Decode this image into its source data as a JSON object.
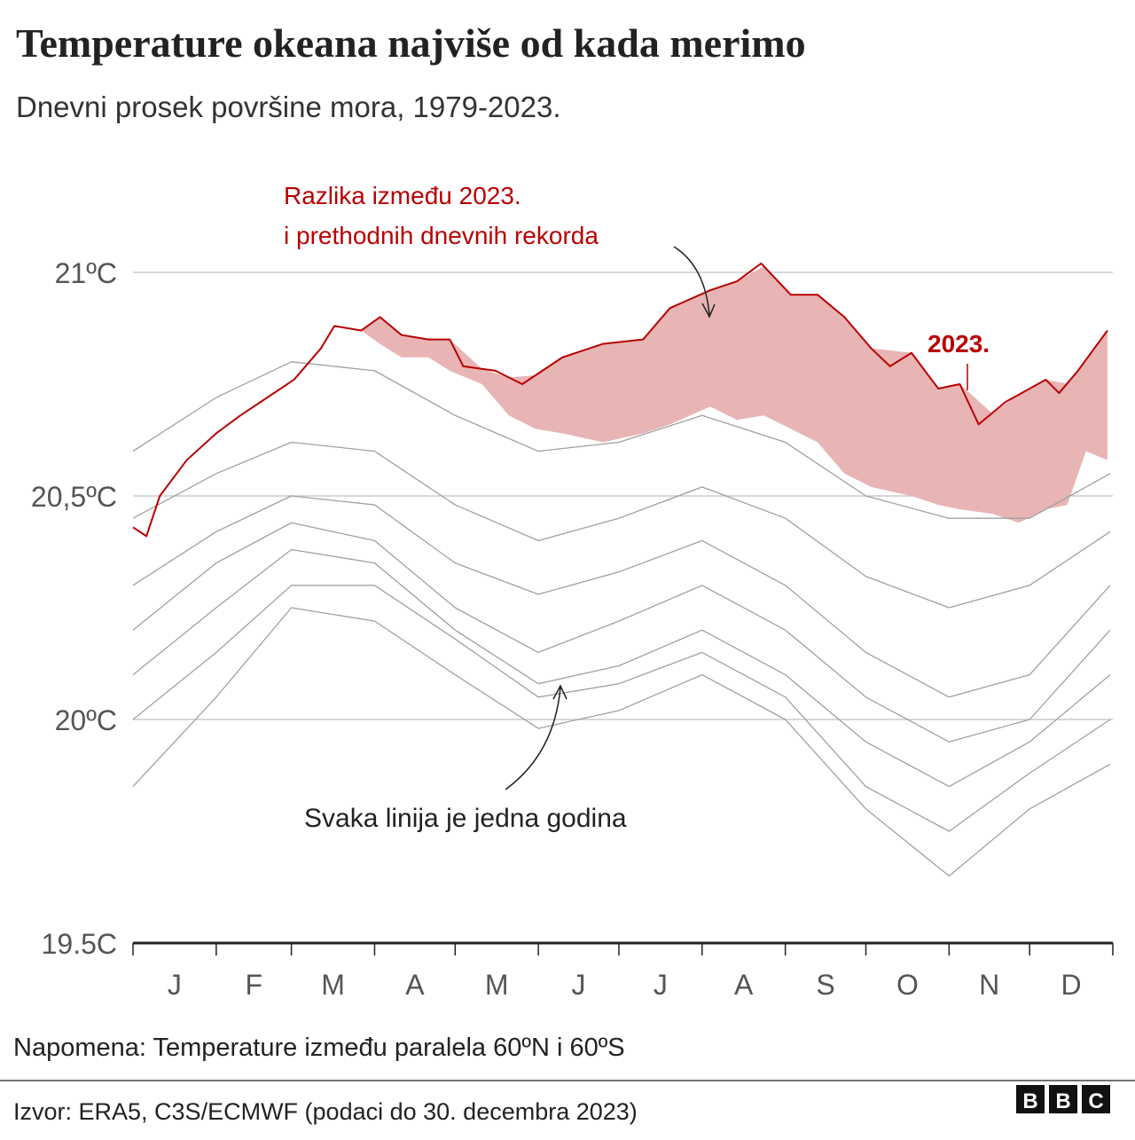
{
  "chart_data": {
    "type": "line",
    "title": "Temperature okeana najviše od kada merimo",
    "subtitle": "Dnevni prosek površine mora, 1979-2023.",
    "annotations": [
      "Razlika između 2023.",
      "i prethodnih dnevnih rekorda",
      "Svaka linija je jedna godina",
      "2023."
    ],
    "note": "Napomena: Temperature između paralela 60ºN i 60ºS",
    "source": "Izvor: ERA5, C3S/ECMWF (podaci do 30. decembra 2023)",
    "logo": [
      "B",
      "B",
      "C"
    ],
    "categories": [
      "J",
      "F",
      "M",
      "A",
      "M",
      "J",
      "J",
      "A",
      "S",
      "O",
      "N",
      "D"
    ],
    "xlim": [
      0,
      365
    ],
    "xticks": [
      0,
      31,
      59,
      90,
      120,
      151,
      181,
      212,
      243,
      273,
      304,
      334,
      365
    ],
    "ylim": [
      19.5,
      21.21
    ],
    "yticks": [
      {
        "value": 19.5,
        "label": "19.5C"
      },
      {
        "value": 20,
        "label": "20ºC"
      },
      {
        "value": 20.5,
        "label": "20,5ºC"
      },
      {
        "value": 21,
        "label": "21ºC"
      }
    ],
    "grid": true,
    "series": [
      {
        "name": "2023.",
        "color": "#b80000",
        "x": [
          0,
          5,
          10,
          20,
          31,
          40,
          50,
          60,
          70,
          75,
          85,
          92,
          100,
          110,
          118,
          123,
          135,
          145,
          160,
          175,
          190,
          200,
          215,
          225,
          234,
          245,
          255,
          265,
          275,
          282,
          290,
          300,
          308,
          315,
          325,
          340,
          345,
          352,
          363
        ],
        "values": [
          20.43,
          20.41,
          20.5,
          20.58,
          20.64,
          20.68,
          20.72,
          20.76,
          20.83,
          20.88,
          20.87,
          20.9,
          20.86,
          20.85,
          20.85,
          20.79,
          20.78,
          20.75,
          20.81,
          20.84,
          20.85,
          20.92,
          20.96,
          20.98,
          21.02,
          20.95,
          20.95,
          20.9,
          20.83,
          20.79,
          20.82,
          20.74,
          20.75,
          20.66,
          20.71,
          20.76,
          20.73,
          20.78,
          20.87
        ]
      },
      {
        "color": "#e8b4b4",
        "x": [
          85,
          92,
          100,
          110,
          118,
          130,
          140,
          150,
          160,
          175,
          190,
          200,
          215,
          225,
          235,
          245,
          255,
          265,
          275,
          290,
          300,
          308,
          320,
          330,
          340,
          348,
          355,
          363
        ],
        "values": [
          20.87,
          20.84,
          20.81,
          20.81,
          20.78,
          20.75,
          20.68,
          20.65,
          20.64,
          20.62,
          20.64,
          20.66,
          20.7,
          20.67,
          20.68,
          20.65,
          20.62,
          20.55,
          20.52,
          20.5,
          20.48,
          20.47,
          20.46,
          20.44,
          20.47,
          20.48,
          20.6,
          20.58
        ]
      },
      {
        "color": "#a0a0a0",
        "x": [
          0,
          31,
          59,
          90,
          120,
          151,
          181,
          212,
          243,
          273,
          304,
          334,
          364
        ],
        "values": [
          20.6,
          20.72,
          20.8,
          20.78,
          20.68,
          20.6,
          20.62,
          20.68,
          20.62,
          20.5,
          20.45,
          20.45,
          20.55
        ]
      },
      {
        "color": "#a0a0a0",
        "x": [
          0,
          31,
          59,
          90,
          120,
          151,
          181,
          212,
          243,
          273,
          304,
          334,
          364
        ],
        "values": [
          20.45,
          20.55,
          20.62,
          20.6,
          20.48,
          20.4,
          20.45,
          20.52,
          20.45,
          20.32,
          20.25,
          20.3,
          20.42
        ]
      },
      {
        "color": "#a0a0a0",
        "x": [
          0,
          31,
          59,
          90,
          120,
          151,
          181,
          212,
          243,
          273,
          304,
          334,
          364
        ],
        "values": [
          20.3,
          20.42,
          20.5,
          20.48,
          20.35,
          20.28,
          20.33,
          20.4,
          20.3,
          20.15,
          20.05,
          20.1,
          20.3
        ]
      },
      {
        "color": "#a0a0a0",
        "x": [
          0,
          31,
          59,
          90,
          120,
          151,
          181,
          212,
          243,
          273,
          304,
          334,
          364
        ],
        "values": [
          20.2,
          20.35,
          20.44,
          20.4,
          20.25,
          20.15,
          20.22,
          20.3,
          20.2,
          20.05,
          19.95,
          20.0,
          20.2
        ]
      },
      {
        "color": "#a0a0a0",
        "x": [
          0,
          31,
          59,
          90,
          120,
          151,
          181,
          212,
          243,
          273,
          304,
          334,
          364
        ],
        "values": [
          20.1,
          20.25,
          20.38,
          20.35,
          20.2,
          20.08,
          20.12,
          20.2,
          20.1,
          19.95,
          19.85,
          19.95,
          20.1
        ]
      },
      {
        "color": "#a0a0a0",
        "x": [
          0,
          31,
          59,
          90,
          120,
          151,
          181,
          212,
          243,
          273,
          304,
          334,
          364
        ],
        "values": [
          20.0,
          20.15,
          20.3,
          20.3,
          20.18,
          20.05,
          20.08,
          20.15,
          20.05,
          19.85,
          19.75,
          19.88,
          20.0
        ]
      },
      {
        "color": "#a0a0a0",
        "x": [
          0,
          31,
          59,
          90,
          120,
          151,
          181,
          212,
          243,
          273,
          304,
          334,
          364
        ],
        "values": [
          19.85,
          20.05,
          20.25,
          20.22,
          20.1,
          19.98,
          20.02,
          20.1,
          20.0,
          19.8,
          19.65,
          19.8,
          19.9
        ]
      }
    ]
  }
}
